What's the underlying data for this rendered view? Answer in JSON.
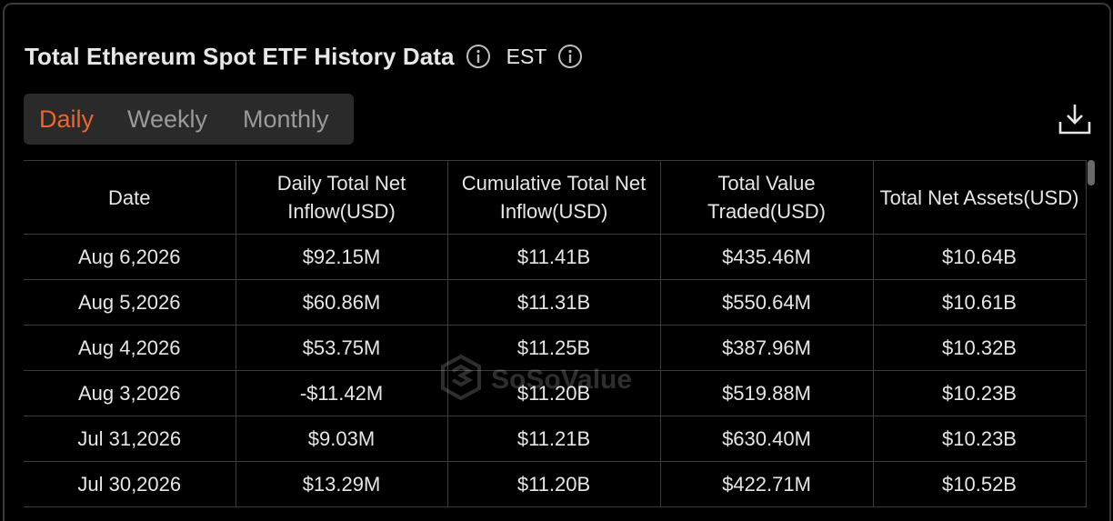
{
  "header": {
    "title": "Total Ethereum Spot ETF History Data",
    "timezone": "EST"
  },
  "tabs": [
    {
      "label": "Daily",
      "active": true
    },
    {
      "label": "Weekly",
      "active": false
    },
    {
      "label": "Monthly",
      "active": false
    }
  ],
  "table": {
    "columns": [
      "Date",
      "Daily Total Net Inflow(USD)",
      "Cumulative Total Net Inflow(USD)",
      "Total Value Traded(USD)",
      "Total Net Assets(USD)"
    ],
    "rows": [
      {
        "date": "Aug 6,2026",
        "inflow": "$92.15M",
        "sign": "pos",
        "cumulative": "$11.41B",
        "traded": "$435.46M",
        "assets": "$10.64B"
      },
      {
        "date": "Aug 5,2026",
        "inflow": "$60.86M",
        "sign": "pos",
        "cumulative": "$11.31B",
        "traded": "$550.64M",
        "assets": "$10.61B"
      },
      {
        "date": "Aug 4,2026",
        "inflow": "$53.75M",
        "sign": "pos",
        "cumulative": "$11.25B",
        "traded": "$387.96M",
        "assets": "$10.32B"
      },
      {
        "date": "Aug 3,2026",
        "inflow": "-$11.42M",
        "sign": "neg",
        "cumulative": "$11.20B",
        "traded": "$519.88M",
        "assets": "$10.23B"
      },
      {
        "date": "Jul 31,2026",
        "inflow": "$9.03M",
        "sign": "pos",
        "cumulative": "$11.21B",
        "traded": "$630.40M",
        "assets": "$10.23B"
      },
      {
        "date": "Jul 30,2026",
        "inflow": "$13.29M",
        "sign": "pos",
        "cumulative": "$11.20B",
        "traded": "$422.71M",
        "assets": "$10.52B"
      }
    ]
  },
  "watermark": {
    "brand": "SoSoValue"
  },
  "colors": {
    "accent": "#f0632a",
    "positive": "#2fbf5a",
    "negative": "#ef3b3b"
  },
  "icons": {
    "info": "info-icon",
    "download": "download-icon"
  }
}
